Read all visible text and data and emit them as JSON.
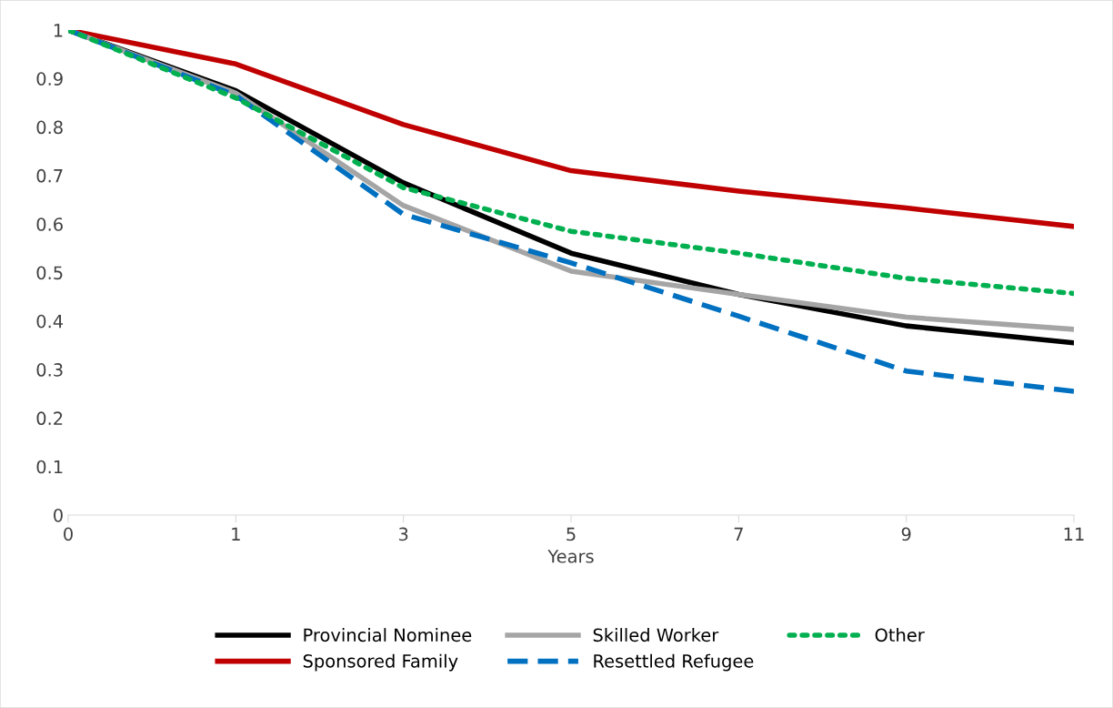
{
  "chart_data": {
    "type": "line",
    "xlabel": "Years",
    "categories": [
      "0",
      "1",
      "3",
      "5",
      "7",
      "9",
      "11"
    ],
    "ylim": [
      0,
      1
    ],
    "yticks": [
      0,
      0.1,
      0.2,
      0.3,
      0.4,
      0.5,
      0.6,
      0.7,
      0.8,
      0.9,
      1
    ],
    "grid": false,
    "legend": "bottom",
    "marker": "none",
    "series": [
      {
        "name": "Provincial Nominee",
        "color": "#000000",
        "line_style": "solid",
        "values": [
          1,
          0.875,
          0.685,
          0.54,
          0.455,
          0.39,
          0.355
        ]
      },
      {
        "name": "Sponsored Family",
        "color": "#c00000",
        "line_style": "solid",
        "values": [
          1,
          0.93,
          0.805,
          0.71,
          0.668,
          0.633,
          0.595
        ]
      },
      {
        "name": "Skilled Worker",
        "color": "#a5a5a5",
        "line_style": "solid",
        "values": [
          1,
          0.87,
          0.638,
          0.503,
          0.455,
          0.408,
          0.383
        ]
      },
      {
        "name": "Resettled Refugee",
        "color": "#0070c0",
        "line_style": "dashed",
        "values": [
          1,
          0.865,
          0.62,
          0.52,
          0.41,
          0.297,
          0.255
        ]
      },
      {
        "name": "Other",
        "color": "#00b050",
        "line_style": "dotted",
        "values": [
          1,
          0.86,
          0.675,
          0.585,
          0.54,
          0.488,
          0.457
        ]
      }
    ]
  }
}
